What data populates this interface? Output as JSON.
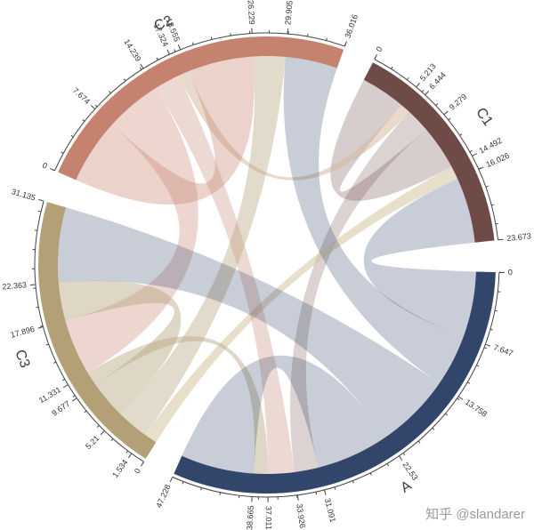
{
  "watermark": "知乎 @slandarer",
  "chart_data": {
    "type": "chord",
    "title": "",
    "layout": {
      "start_deg": -156,
      "gap_deg": 8,
      "background": "#ffffff",
      "order_clockwise": [
        "C2",
        "C1",
        "A",
        "C3"
      ]
    },
    "sectors": [
      {
        "id": "C2",
        "label": "C2",
        "total": 36.016,
        "color": "#c5826e",
        "ticks": [
          "0",
          "7.674",
          "14.239",
          "17.324",
          "18.555",
          "26.229",
          "29.905",
          "36.016"
        ]
      },
      {
        "id": "C1",
        "label": "C1",
        "total": 23.673,
        "color": "#6f4b47",
        "ticks": [
          "0",
          "5.213",
          "6.444",
          "9.279",
          "14.492",
          "16.026",
          "23.673"
        ]
      },
      {
        "id": "A",
        "label": "A",
        "total": 47.228,
        "color": "#32466b",
        "ticks": [
          "0",
          "7.647",
          "13.758",
          "22.53",
          "31.091",
          "33.926",
          "37.011",
          "38.665",
          "47.228"
        ]
      },
      {
        "id": "C3",
        "label": "C3",
        "total": 31.135,
        "color": "#b3a077",
        "ticks": [
          "0",
          "1.534",
          "5.21",
          "9.677",
          "11.331",
          "17.896",
          "22.363",
          "31.135"
        ]
      }
    ],
    "chords": [
      {
        "source": "C1",
        "s0": 0,
        "s1": 5.213,
        "target": "C1",
        "t0": 9.279,
        "t1": 14.492,
        "value": 5.213,
        "color": "rgba(112,75,71,0.28)"
      },
      {
        "source": "C1",
        "s0": 5.213,
        "s1": 6.444,
        "target": "C2",
        "t0": 17.324,
        "t1": 18.555,
        "value": 1.231,
        "color": "rgba(214,186,160,0.55)"
      },
      {
        "source": "C1",
        "s0": 6.444,
        "s1": 9.279,
        "target": "A",
        "t0": 31.091,
        "t1": 33.926,
        "value": 2.835,
        "color": "rgba(112,75,71,0.25)"
      },
      {
        "source": "C1",
        "s0": 14.492,
        "s1": 16.026,
        "target": "C3",
        "t0": 0,
        "t1": 1.534,
        "value": 1.534,
        "color": "rgba(214,196,160,0.55)"
      },
      {
        "source": "C1",
        "s0": 16.026,
        "s1": 23.673,
        "target": "A",
        "t0": 0,
        "t1": 7.647,
        "value": 7.647,
        "color": "rgba(50,70,107,0.27)"
      },
      {
        "source": "C2",
        "s0": 0,
        "s1": 7.674,
        "target": "C2",
        "t0": 18.555,
        "t1": 26.229,
        "value": 7.674,
        "color": "rgba(197,130,110,0.35)"
      },
      {
        "source": "C2",
        "s0": 7.674,
        "s1": 14.239,
        "target": "C3",
        "t0": 11.331,
        "t1": 17.896,
        "value": 6.565,
        "color": "rgba(197,130,110,0.33)"
      },
      {
        "source": "C2",
        "s0": 14.239,
        "s1": 17.324,
        "target": "A",
        "t0": 33.926,
        "t1": 37.011,
        "value": 3.085,
        "color": "rgba(197,130,110,0.30)"
      },
      {
        "source": "C2",
        "s0": 26.229,
        "s1": 29.905,
        "target": "C3",
        "t0": 1.534,
        "t1": 5.21,
        "value": 3.676,
        "color": "rgba(179,160,119,0.38)"
      },
      {
        "source": "C2",
        "s0": 29.905,
        "s1": 36.016,
        "target": "A",
        "t0": 7.647,
        "t1": 13.758,
        "value": 6.111,
        "color": "rgba(50,70,107,0.27)"
      },
      {
        "source": "C3",
        "s0": 5.21,
        "s1": 9.677,
        "target": "C3",
        "t0": 17.896,
        "t1": 22.363,
        "value": 4.467,
        "color": "rgba(179,160,119,0.42)"
      },
      {
        "source": "C3",
        "s0": 9.677,
        "s1": 11.331,
        "target": "A",
        "t0": 37.011,
        "t1": 38.665,
        "value": 1.654,
        "color": "rgba(179,160,119,0.42)"
      },
      {
        "source": "C3",
        "s0": 22.363,
        "s1": 31.135,
        "target": "A",
        "t0": 13.758,
        "t1": 22.53,
        "value": 8.772,
        "color": "rgba(50,70,107,0.27)"
      },
      {
        "source": "A",
        "s0": 22.53,
        "s1": 31.091,
        "target": "A",
        "t0": 38.665,
        "t1": 47.228,
        "value": 8.561,
        "color": "rgba(50,70,107,0.27)"
      }
    ]
  }
}
